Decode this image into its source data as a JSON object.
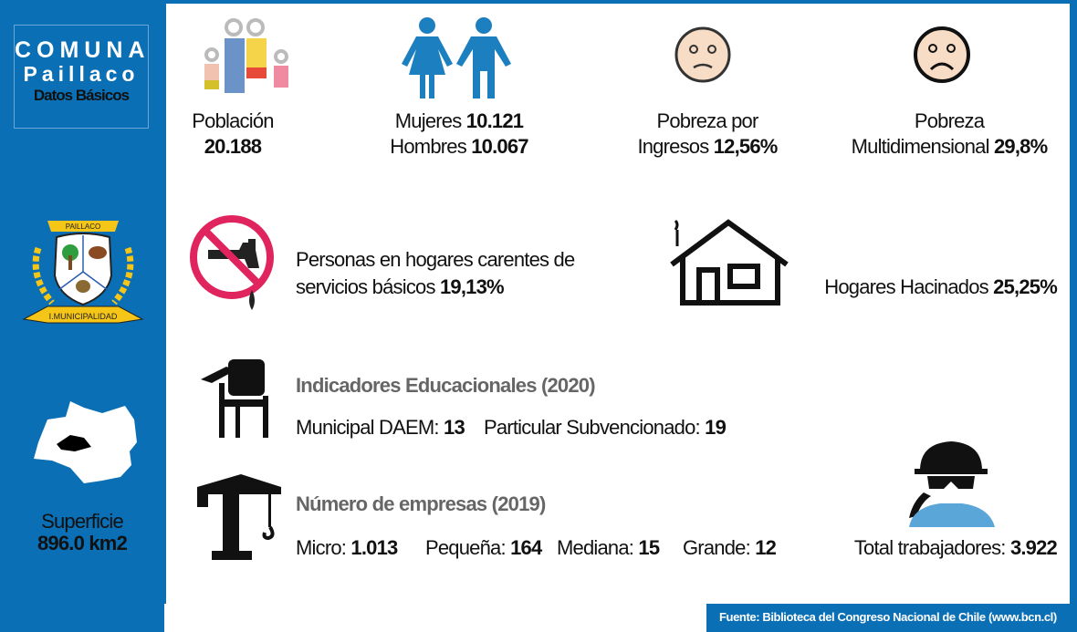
{
  "sidebar": {
    "title_line1": "COMUNA",
    "title_line2": "Paillaco",
    "title_line3": "Datos Básicos",
    "crest_text_top": "PAILLACO",
    "crest_text_bottom": "I.MUNICIPALIDAD",
    "surface_label": "Superficie",
    "surface_value": "896.0 km2"
  },
  "population": {
    "label": "Población",
    "value": "20.188",
    "icon": "family-icon"
  },
  "gender": {
    "women_label": "Mujeres",
    "women_value": "10.121",
    "men_label": "Hombres",
    "men_value": "10.067",
    "icon": "woman-man-icon"
  },
  "income_poverty": {
    "label_line1": "Pobreza por",
    "label_line2": "Ingresos",
    "value": "12,56%",
    "icon": "sad-face-icon"
  },
  "multi_poverty": {
    "label_line1": "Pobreza",
    "label_line2": "Multidimensional",
    "value": "29,8%",
    "icon": "worried-face-icon"
  },
  "basic_services": {
    "label_line1": "Personas en hogares carentes de",
    "label_line2": "servicios básicos",
    "value": "19,13%",
    "icon": "no-water-tap-icon"
  },
  "overcrowding": {
    "label": "Hogares Hacinados",
    "value": "25,25%",
    "icon": "house-icon"
  },
  "education": {
    "title": "Indicadores Educacionales (2020)",
    "municipal_label": "Municipal DAEM:",
    "municipal_value": "13",
    "subsidized_label": "Particular Subvencionado:",
    "subsidized_value": "19",
    "icon": "school-desk-icon"
  },
  "companies": {
    "title": "Número de empresas (2019)",
    "micro_label": "Micro:",
    "micro_value": "1.013",
    "small_label": "Pequeña:",
    "small_value": "164",
    "medium_label": "Mediana:",
    "medium_value": "15",
    "large_label": "Grande:",
    "large_value": "12",
    "icon": "crane-icon"
  },
  "workers": {
    "label": "Total trabajadores:",
    "value": "3.922",
    "icon": "worker-icon"
  },
  "footer": {
    "source": "Fuente: Biblioteca del Congreso Nacional de Chile (www.bcn.cl)"
  },
  "colors": {
    "brand_blue": "#0a6fb4",
    "icon_blue": "#1c7fc0",
    "prohibition_pink": "#e0245e",
    "crest_yellow": "#f5c518"
  }
}
